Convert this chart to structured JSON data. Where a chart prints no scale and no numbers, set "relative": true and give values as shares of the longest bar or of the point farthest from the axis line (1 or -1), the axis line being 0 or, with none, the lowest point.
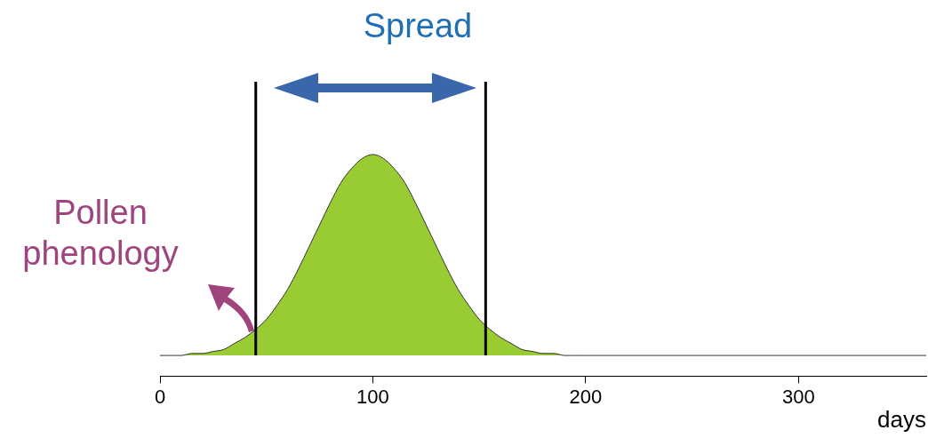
{
  "chart_data": {
    "type": "area",
    "relative": true,
    "xlabel": "days",
    "x": [
      0,
      5,
      10,
      15,
      20,
      25,
      30,
      35,
      40,
      45,
      50,
      55,
      60,
      65,
      70,
      75,
      80,
      85,
      90,
      95,
      100,
      105,
      110,
      115,
      120,
      125,
      130,
      135,
      140,
      145,
      150,
      155,
      160,
      165,
      170,
      175,
      180,
      185,
      190,
      195,
      200,
      360
    ],
    "series": [
      {
        "color": "#99cc33",
        "values": [
          0,
          0,
          0,
          0.01,
          0.01,
          0.02,
          0.03,
          0.06,
          0.09,
          0.13,
          0.18,
          0.25,
          0.33,
          0.43,
          0.54,
          0.65,
          0.76,
          0.86,
          0.93,
          0.98,
          1,
          0.98,
          0.93,
          0.86,
          0.76,
          0.65,
          0.54,
          0.43,
          0.33,
          0.25,
          0.18,
          0.13,
          0.09,
          0.06,
          0.03,
          0.02,
          0.01,
          0.01,
          0,
          0,
          0,
          0
        ]
      }
    ],
    "xlim": [
      0,
      360
    ],
    "xticks": [
      0,
      100,
      200,
      300
    ],
    "grid": false,
    "legend": false,
    "ref_lines": [
      {
        "axis": "x",
        "value": 45,
        "color": "#000000"
      },
      {
        "axis": "x",
        "value": 153,
        "color": "#000000"
      }
    ],
    "annotations": [
      "Spread",
      "Pollen phenology"
    ]
  }
}
